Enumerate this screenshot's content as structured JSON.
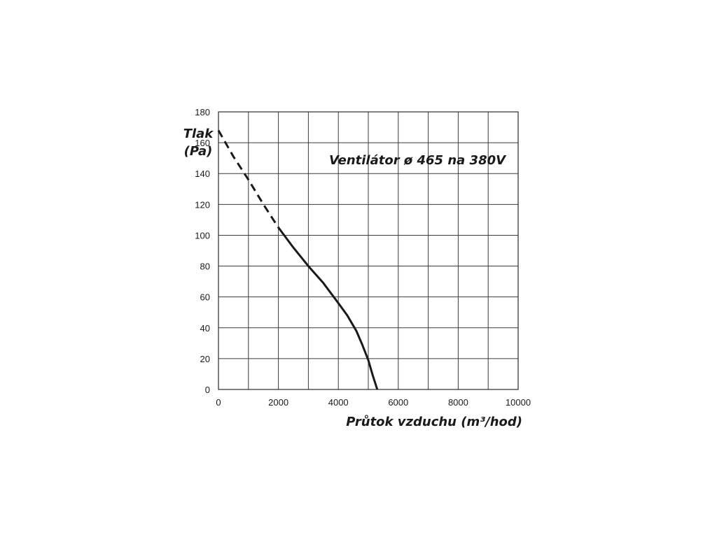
{
  "chart_data": {
    "type": "line",
    "title": "Ventilátor ø 465 na 380V",
    "xlabel": "Průtok vzduchu (m³/hod)",
    "ylabel_line1": "Tlak",
    "ylabel_line2": "(Pa)",
    "xlim": [
      0,
      10000
    ],
    "ylim": [
      0,
      180
    ],
    "x_ticks": [
      0,
      2000,
      4000,
      6000,
      8000,
      10000
    ],
    "y_ticks": [
      0,
      20,
      40,
      60,
      80,
      100,
      120,
      140,
      160,
      180
    ],
    "x_tick_labels": [
      "0",
      "2000",
      "4000",
      "6000",
      "8000",
      "10000"
    ],
    "y_tick_labels": [
      "0",
      "20",
      "40",
      "60",
      "80",
      "100",
      "120",
      "140",
      "160",
      "180"
    ],
    "grid": true,
    "grid_x_step": 1000,
    "grid_y_step": 20,
    "series": [
      {
        "style": "dashed",
        "color": "#1a1a1a",
        "x": [
          0,
          500,
          1000,
          1500,
          2000
        ],
        "y": [
          168,
          151,
          136,
          120,
          105
        ]
      },
      {
        "style": "solid",
        "color": "#1a1a1a",
        "x": [
          2000,
          2500,
          3000,
          3500,
          4000,
          4300,
          4600,
          4800,
          5000,
          5150,
          5300
        ],
        "y": [
          105,
          92,
          80,
          69,
          56,
          48,
          38,
          29,
          19,
          9,
          0
        ]
      }
    ]
  }
}
